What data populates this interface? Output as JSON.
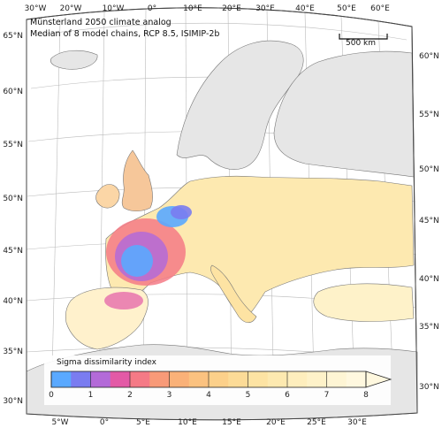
{
  "title": {
    "line1": "Münsterland 2050 climate analog",
    "line2": "Median of 8 model chains, RCP 8.5, ISIMIP-2b"
  },
  "scale_bar": {
    "label": "500 km"
  },
  "graticule": {
    "top_lon_labels": [
      "30°W",
      "20°W",
      "10°W",
      "0°",
      "10°E",
      "20°E",
      "30°E",
      "40°E",
      "50°E",
      "60°E"
    ],
    "bottom_lon_labels": [
      "5°W",
      "0°",
      "5°E",
      "10°E",
      "15°E",
      "20°E",
      "25°E",
      "30°E"
    ],
    "left_lat_labels": [
      "65°N",
      "60°N",
      "55°N",
      "50°N",
      "45°N",
      "40°N",
      "35°N",
      "30°N"
    ],
    "right_lat_labels": [
      "60°N",
      "55°N",
      "50°N",
      "45°N",
      "40°N",
      "35°N",
      "30°N"
    ]
  },
  "colorbar": {
    "title": "Sigma dissimilarity index",
    "min": 0,
    "max": 8,
    "tick_labels": [
      "0",
      "1",
      "2",
      "3",
      "4",
      "5",
      "6",
      "7",
      "8"
    ],
    "colors": [
      "#5aa9ff",
      "#7a7cf0",
      "#b36ad8",
      "#e35aa6",
      "#f57a86",
      "#f89a78",
      "#fab178",
      "#fbc280",
      "#fcd08a",
      "#fcdb97",
      "#fde3a3",
      "#fde9b0",
      "#feeebd",
      "#fef2c9",
      "#fef5d4",
      "#fff8df"
    ]
  },
  "colors": {
    "sea": "#ffffff",
    "land_outside": "#e6e6e6",
    "border": "#222222",
    "analog_low": "#5aa9ff",
    "analog_mid": "#e35aa6",
    "analog_high": "#fde9b0"
  }
}
